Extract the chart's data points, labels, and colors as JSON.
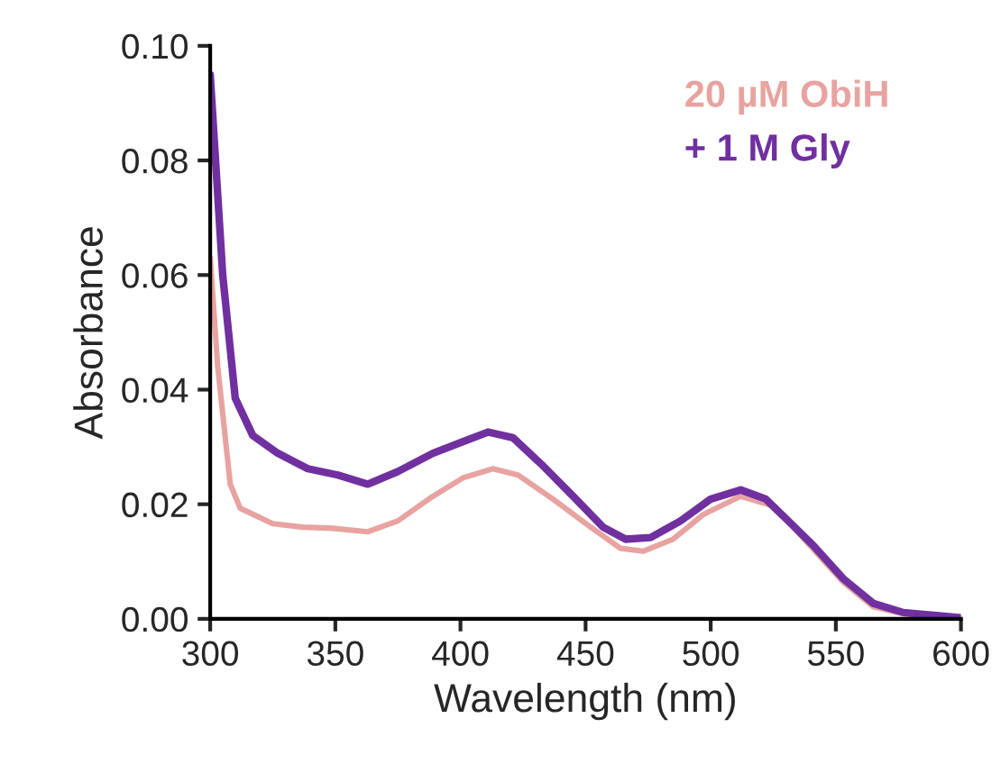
{
  "chart_data": {
    "type": "line",
    "xlabel": "Wavelength (nm)",
    "ylabel": "Absorbance",
    "xlim": [
      300,
      600
    ],
    "xticks": [
      300,
      350,
      400,
      450,
      500,
      550,
      600
    ],
    "ylim": [
      0,
      0.1
    ],
    "yticks": [
      {
        "value": 0,
        "label": "0.00"
      },
      {
        "value": 0.02,
        "label": "0.02"
      },
      {
        "value": 0.04,
        "label": "0.04"
      },
      {
        "value": 0.06,
        "label": "0.06"
      },
      {
        "value": 0.08,
        "label": "0.08"
      },
      {
        "value": 0.1,
        "label": "0.10"
      }
    ],
    "grid": false,
    "legend": "top right",
    "marker": "none",
    "line_style": "solid",
    "series": [
      {
        "name": "20 µM ObiH",
        "color": "#e8a3a0",
        "x": [
          300,
          303,
          308,
          312,
          325,
          337,
          349,
          363,
          375,
          389,
          401,
          413,
          423,
          437,
          452,
          464,
          473,
          485,
          497,
          512,
          524,
          533,
          543,
          553,
          565,
          577,
          600
        ],
        "values": [
          0.063,
          0.044,
          0.0235,
          0.0193,
          0.0166,
          0.016,
          0.0158,
          0.0152,
          0.0171,
          0.0214,
          0.0246,
          0.0262,
          0.0251,
          0.0209,
          0.016,
          0.0123,
          0.0118,
          0.0139,
          0.0182,
          0.0214,
          0.0198,
          0.016,
          0.0112,
          0.0064,
          0.0021,
          0.0009,
          0.0002
        ]
      },
      {
        "name": "+ 1 M Gly",
        "color": "#7030a0",
        "x": [
          300,
          305,
          310,
          317,
          327,
          339,
          351,
          363,
          375,
          389,
          411,
          421,
          433,
          445,
          457,
          466,
          476,
          488,
          500,
          512,
          522,
          531,
          541,
          553,
          565,
          577,
          600
        ],
        "values": [
          0.095,
          0.06,
          0.0385,
          0.032,
          0.0289,
          0.0262,
          0.0251,
          0.0235,
          0.0257,
          0.0289,
          0.0326,
          0.0316,
          0.0267,
          0.0214,
          0.016,
          0.0139,
          0.0142,
          0.0171,
          0.0209,
          0.0225,
          0.0209,
          0.0171,
          0.0128,
          0.007,
          0.0027,
          0.0011,
          0.0002
        ]
      }
    ]
  }
}
